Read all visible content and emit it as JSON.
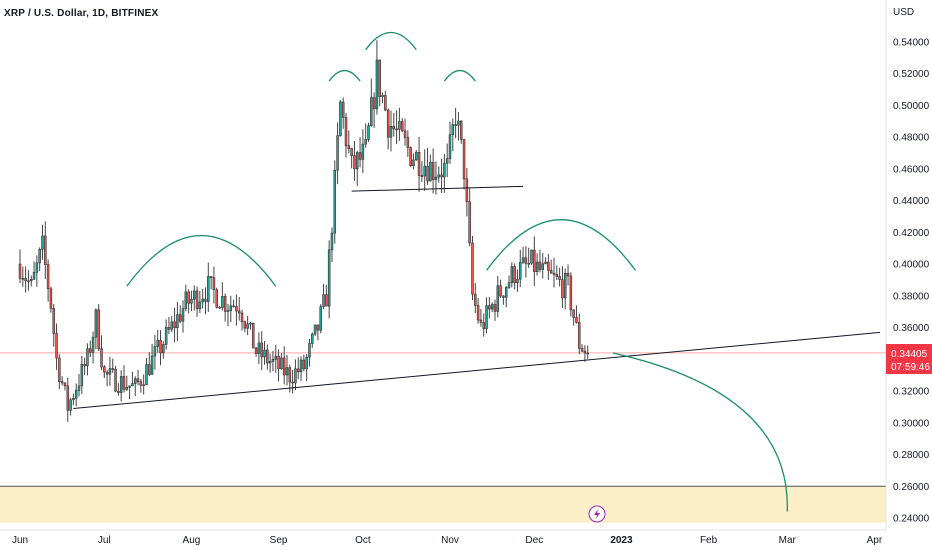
{
  "header": {
    "title": "XRP / U.S. Dollar, 1D, BITFINEX"
  },
  "price_axis": {
    "currency": "USD"
  },
  "last_price": {
    "value": "0.34405",
    "countdown": "07:59:46"
  },
  "colors": {
    "up": "#26a69a",
    "down": "#ef5350",
    "wick": "#444444",
    "arc": "#1b8f6a",
    "support_zone": "#fcefc7",
    "price_tag": "#f23645"
  },
  "chart_data": {
    "type": "candlestick",
    "title": "XRP / U.S. Dollar, 1D, BITFINEX",
    "ylabel": "USD",
    "ylim": [
      0.235,
      0.575
    ],
    "y_ticks": [
      "0.54000",
      "0.52000",
      "0.50000",
      "0.48000",
      "0.46000",
      "0.44000",
      "0.42000",
      "0.40000",
      "0.38000",
      "0.36000",
      "0.32000",
      "0.30000",
      "0.28000",
      "0.26000",
      "0.24000"
    ],
    "x_ticks": [
      "Jun",
      "Jul",
      "Aug",
      "Sep",
      "Oct",
      "Nov",
      "Dec",
      "2023",
      "Feb",
      "Mar",
      "Apr"
    ],
    "date_range": [
      "2022-06-01",
      "2023-04-03"
    ],
    "ohlc_anchors": [
      {
        "date": "2022-06-01",
        "close": 0.4
      },
      {
        "date": "2022-06-05",
        "close": 0.385
      },
      {
        "date": "2022-06-09",
        "close": 0.41
      },
      {
        "date": "2022-06-12",
        "close": 0.375
      },
      {
        "date": "2022-06-14",
        "close": 0.34
      },
      {
        "date": "2022-06-18",
        "close": 0.31
      },
      {
        "date": "2022-06-25",
        "close": 0.34
      },
      {
        "date": "2022-06-28",
        "close": 0.365
      },
      {
        "date": "2022-07-01",
        "close": 0.33
      },
      {
        "date": "2022-07-12",
        "close": 0.322
      },
      {
        "date": "2022-07-20",
        "close": 0.345
      },
      {
        "date": "2022-07-30",
        "close": 0.375
      },
      {
        "date": "2022-08-07",
        "close": 0.385
      },
      {
        "date": "2022-08-14",
        "close": 0.375
      },
      {
        "date": "2022-08-18",
        "close": 0.375
      },
      {
        "date": "2022-08-24",
        "close": 0.345
      },
      {
        "date": "2022-09-05",
        "close": 0.33
      },
      {
        "date": "2022-09-10",
        "close": 0.335
      },
      {
        "date": "2022-09-15",
        "close": 0.36
      },
      {
        "date": "2022-09-18",
        "close": 0.38
      },
      {
        "date": "2022-09-21",
        "close": 0.45
      },
      {
        "date": "2022-09-23",
        "close": 0.5
      },
      {
        "date": "2022-09-27",
        "close": 0.46
      },
      {
        "date": "2022-10-02",
        "close": 0.47
      },
      {
        "date": "2022-10-06",
        "close": 0.52
      },
      {
        "date": "2022-10-10",
        "close": 0.49
      },
      {
        "date": "2022-10-18",
        "close": 0.47
      },
      {
        "date": "2022-10-26",
        "close": 0.46
      },
      {
        "date": "2022-10-31",
        "close": 0.46
      },
      {
        "date": "2022-11-03",
        "close": 0.495
      },
      {
        "date": "2022-11-06",
        "close": 0.46
      },
      {
        "date": "2022-11-09",
        "close": 0.38
      },
      {
        "date": "2022-11-12",
        "close": 0.36
      },
      {
        "date": "2022-11-18",
        "close": 0.38
      },
      {
        "date": "2022-11-24",
        "close": 0.395
      },
      {
        "date": "2022-11-30",
        "close": 0.4
      },
      {
        "date": "2022-12-06",
        "close": 0.392
      },
      {
        "date": "2022-12-13",
        "close": 0.385
      },
      {
        "date": "2022-12-17",
        "close": 0.35
      },
      {
        "date": "2022-12-20",
        "close": 0.344
      }
    ],
    "annotations": [
      {
        "type": "trendline",
        "points": [
          [
            "2022-06-20",
            0.309
          ],
          [
            "2023-04-03",
            0.357
          ]
        ]
      },
      {
        "type": "neckline",
        "points": [
          [
            "2022-09-27",
            0.446
          ],
          [
            "2022-11-27",
            0.449
          ]
        ]
      },
      {
        "type": "support_zone",
        "y_range": [
          0.237,
          0.26
        ]
      },
      {
        "type": "projection_arc",
        "from": [
          "2022-12-29",
          0.344
        ],
        "to": [
          "2023-03-01",
          0.244
        ]
      },
      {
        "type": "arc",
        "label": "left shoulder",
        "x_range": [
          "2022-07-09",
          "2022-08-31"
        ],
        "peak": 0.418
      },
      {
        "type": "arc",
        "label": "head left",
        "x_range": [
          "2022-09-19",
          "2022-09-30"
        ],
        "peak": 0.522
      },
      {
        "type": "arc",
        "label": "head",
        "x_range": [
          "2022-10-02",
          "2022-10-20"
        ],
        "peak": 0.546
      },
      {
        "type": "arc",
        "label": "head right",
        "x_range": [
          "2022-10-30",
          "2022-11-10"
        ],
        "peak": 0.522
      },
      {
        "type": "arc",
        "label": "right shoulder",
        "x_range": [
          "2022-11-14",
          "2023-01-06"
        ],
        "peak": 0.428
      }
    ]
  }
}
